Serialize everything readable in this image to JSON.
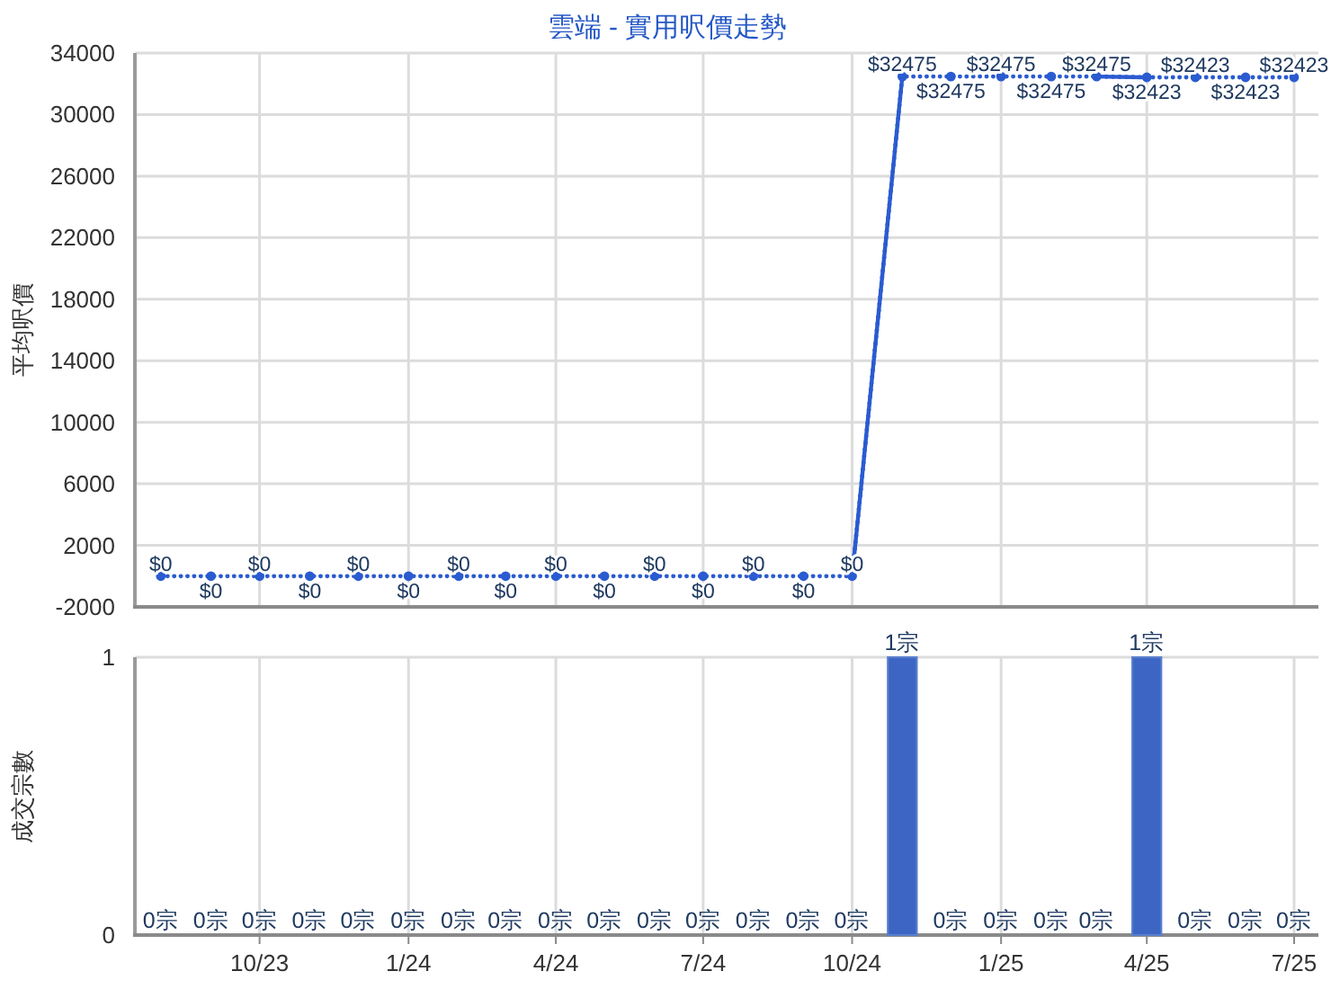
{
  "chart_data": [
    {
      "type": "line",
      "title": "雲端 - 實用呎價走勢",
      "ylabel": "平均呎價",
      "x": [
        "2023-08",
        "2023-09",
        "2023-10",
        "2023-11",
        "2023-12",
        "2024-01",
        "2024-02",
        "2024-03",
        "2024-04",
        "2024-05",
        "2024-06",
        "2024-07",
        "2024-08",
        "2024-09",
        "2024-10",
        "2024-11",
        "2024-12",
        "2025-01",
        "2025-02",
        "2025-03",
        "2025-04",
        "2025-05",
        "2025-06",
        "2025-07"
      ],
      "series": [
        {
          "color": "#2a5bd0",
          "line_style": "dotted",
          "marker": "circle",
          "values": [
            0,
            0,
            0,
            0,
            0,
            0,
            0,
            0,
            0,
            0,
            0,
            0,
            0,
            0,
            0,
            32475,
            32475,
            32475,
            32475,
            32475,
            32423,
            32423,
            32423,
            32423
          ],
          "value_labels": [
            "$0",
            "$0",
            "$0",
            "$0",
            "$0",
            "$0",
            "$0",
            "$0",
            "$0",
            "$0",
            "$0",
            "$0",
            "$0",
            "$0",
            "$0",
            "$32475",
            "$32475",
            "$32475",
            "$32475",
            "$32475",
            "$32423",
            "$32423",
            "$32423",
            "$32423"
          ]
        },
        {
          "color": "#2a5bd0",
          "line_style": "solid",
          "marker": "none",
          "values": [
            null,
            null,
            null,
            null,
            null,
            null,
            null,
            null,
            null,
            null,
            null,
            null,
            null,
            null,
            0,
            32475,
            null,
            null,
            null,
            32475,
            32423,
            null,
            null,
            null
          ]
        }
      ],
      "xlim": [
        "2023-07-16",
        "2025-07-16"
      ],
      "xticks": [
        {
          "value": "2023-10",
          "label": null
        },
        {
          "value": "2024-01",
          "label": null
        },
        {
          "value": "2024-04",
          "label": null
        },
        {
          "value": "2024-07",
          "label": null
        },
        {
          "value": "2024-10",
          "label": null
        },
        {
          "value": "2025-01",
          "label": null
        },
        {
          "value": "2025-04",
          "label": null
        },
        {
          "value": "2025-07",
          "label": null
        }
      ],
      "ylim": [
        -2000,
        34000
      ],
      "yticks": [
        -2000,
        2000,
        6000,
        10000,
        14000,
        18000,
        22000,
        26000,
        30000,
        34000
      ],
      "grid": true,
      "tick_labels": "y"
    },
    {
      "type": "bar",
      "ylabel": "成交宗數",
      "x": [
        "2023-08",
        "2023-09",
        "2023-10",
        "2023-11",
        "2023-12",
        "2024-01",
        "2024-02",
        "2024-03",
        "2024-04",
        "2024-05",
        "2024-06",
        "2024-07",
        "2024-08",
        "2024-09",
        "2024-10",
        "2024-11",
        "2024-12",
        "2025-01",
        "2025-02",
        "2025-03",
        "2025-04",
        "2025-05",
        "2025-06",
        "2025-07"
      ],
      "values": [
        0,
        0,
        0,
        0,
        0,
        0,
        0,
        0,
        0,
        0,
        0,
        0,
        0,
        0,
        0,
        1,
        0,
        0,
        0,
        0,
        1,
        0,
        0,
        0
      ],
      "value_labels": [
        "0宗",
        "0宗",
        "0宗",
        "0宗",
        "0宗",
        "0宗",
        "0宗",
        "0宗",
        "0宗",
        "0宗",
        "0宗",
        "0宗",
        "0宗",
        "0宗",
        "0宗",
        "1宗",
        "0宗",
        "0宗",
        "0宗",
        "0宗",
        "1宗",
        "0宗",
        "0宗",
        "0宗"
      ],
      "color": "#3d66c4",
      "xlim": [
        "2023-07-16",
        "2025-07-16"
      ],
      "xticks": [
        {
          "value": "2023-10",
          "label": "10/23"
        },
        {
          "value": "2024-01",
          "label": "1/24"
        },
        {
          "value": "2024-04",
          "label": "4/24"
        },
        {
          "value": "2024-07",
          "label": "7/24"
        },
        {
          "value": "2024-10",
          "label": "10/24"
        },
        {
          "value": "2025-01",
          "label": "1/25"
        },
        {
          "value": "2025-04",
          "label": "4/25"
        },
        {
          "value": "2025-07",
          "label": "7/25"
        }
      ],
      "ylim": [
        0,
        1
      ],
      "yticks": [
        0,
        1
      ],
      "grid": true
    }
  ]
}
